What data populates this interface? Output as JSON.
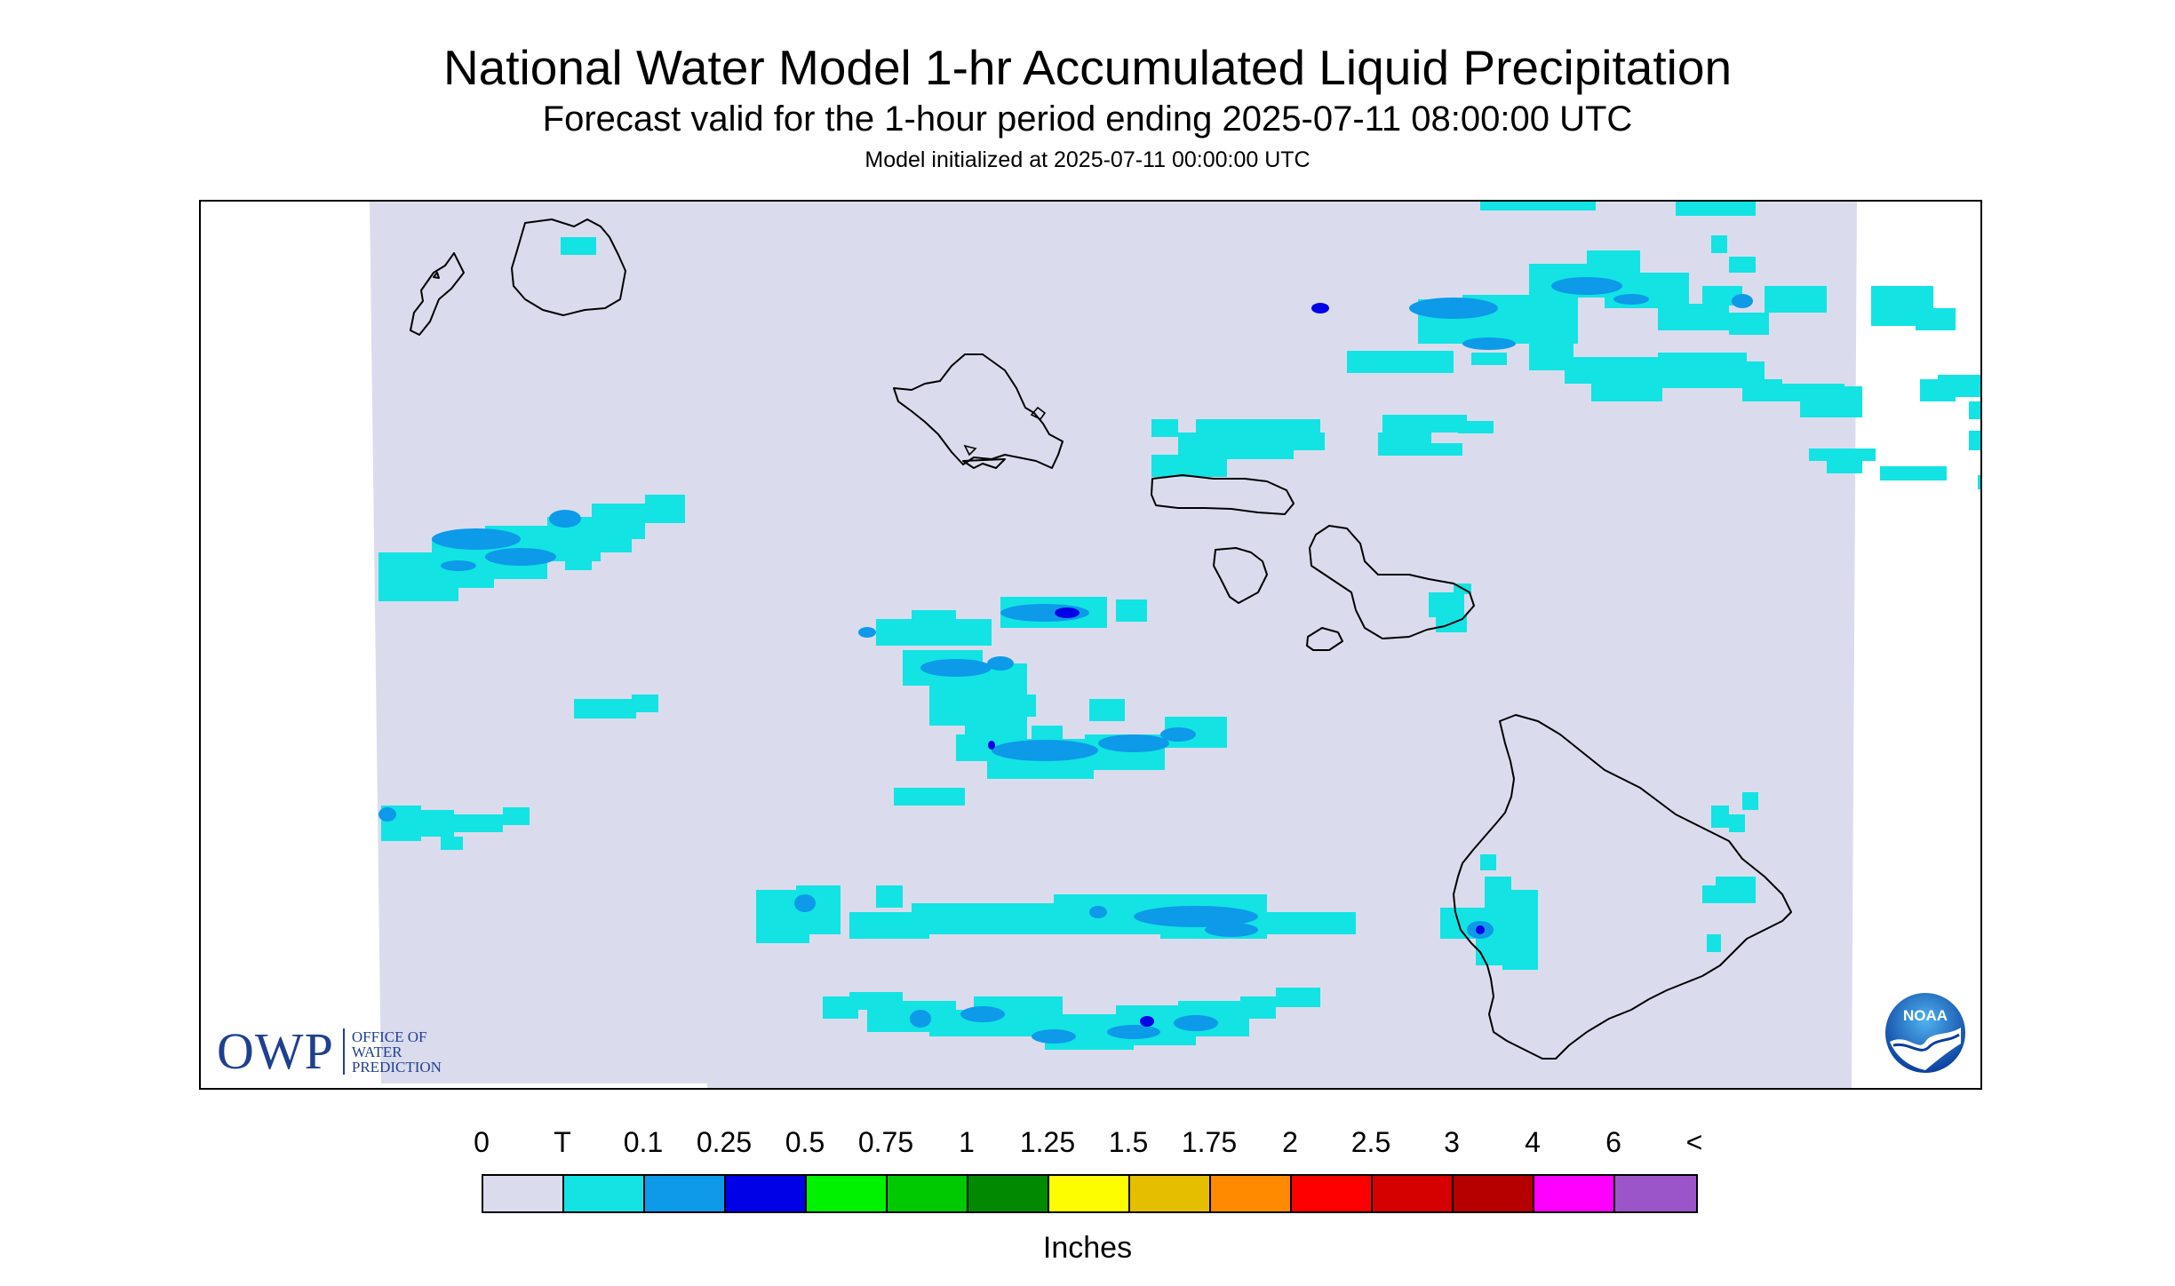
{
  "title": "National Water Model 1-hr Accumulated Liquid Precipitation",
  "subtitle": "Forecast valid for the 1-hour period ending 2025-07-11 08:00:00 UTC",
  "init_line": "Model initialized at 2025-07-11 00:00:00 UTC",
  "logos": {
    "owp_acronym": "OWP",
    "owp_line1": "OFFICE OF",
    "owp_line2": "WATER",
    "owp_line3": "PREDICTION",
    "noaa": "NOAA"
  },
  "legend": {
    "ticks": [
      "0",
      "T",
      "0.1",
      "0.25",
      "0.5",
      "0.75",
      "1",
      "1.25",
      "1.5",
      "1.75",
      "2",
      "2.5",
      "3",
      "4",
      "6",
      "<"
    ],
    "colors": [
      "#dadcee",
      "#13e3e3",
      "#0c9ae9",
      "#0101e8",
      "#00f200",
      "#01c901",
      "#018a01",
      "#fdfd00",
      "#e6be00",
      "#ff8a00",
      "#ff0000",
      "#d50000",
      "#b60000",
      "#ff00fe",
      "#9c55c9"
    ],
    "units": "Inches"
  },
  "colors": {
    "background": "#dadcee",
    "trace": "#13e3e3",
    "light_blue": "#0c9ae9",
    "blue": "#0101e8",
    "coast": "#000000"
  }
}
